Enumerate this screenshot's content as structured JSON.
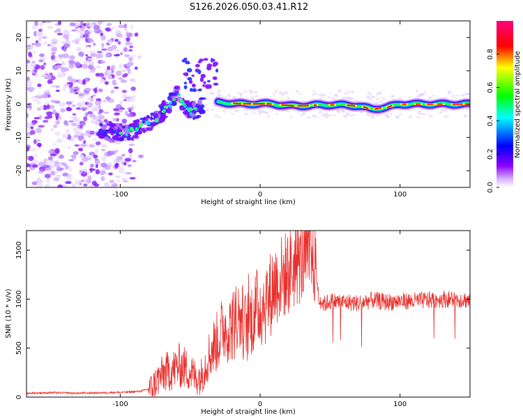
{
  "figure": {
    "title": "S126.2026.050.03.41.R12"
  },
  "chart_data": [
    {
      "type": "heatmap",
      "title": "S126.2026.050.03.41.R12",
      "xlabel": "Height of straight line (km)",
      "ylabel": "Frequency (Hz)",
      "xlim": [
        -167,
        150
      ],
      "ylim": [
        -25,
        25
      ],
      "xticks": [
        -100,
        0,
        100
      ],
      "yticks": [
        -20,
        -10,
        0,
        10,
        20
      ],
      "grid": false,
      "colorbar": {
        "label": "Normalized spectral amplitude",
        "range": [
          0,
          1
        ],
        "ticks": [
          "0.0",
          "0.2",
          "0.4",
          "0.6",
          "0.8"
        ],
        "colormap": [
          "#ffffff",
          "#8b00ff",
          "#0000ff",
          "#00ffff",
          "#00ff00",
          "#ffff00",
          "#ff0000",
          "#ff00aa"
        ]
      },
      "ridge": {
        "description": "dominant frequency track",
        "x": [
          -115,
          -105,
          -95,
          -85,
          -75,
          -65,
          -60,
          -55,
          -50,
          -45,
          -40,
          -30,
          -20,
          -10,
          0,
          10,
          20,
          30,
          40,
          50,
          60,
          70,
          80,
          90,
          100,
          110,
          120,
          130,
          140,
          150
        ],
        "y": [
          -8,
          -8,
          -8.5,
          -7,
          -5,
          0,
          3,
          0.5,
          -2,
          -1.5,
          0,
          0.5,
          0.3,
          0,
          0.2,
          0,
          -0.5,
          -0.5,
          -0.3,
          -0.2,
          -0.3,
          -0.5,
          -1.5,
          -1,
          0,
          0,
          0,
          0,
          0,
          0
        ]
      },
      "noise_region": {
        "description": "scattered low-amplitude noise",
        "x_range": [
          -167,
          -95
        ],
        "y_range": [
          -25,
          25
        ]
      }
    },
    {
      "type": "line",
      "xlabel": "Height of straight line (km)",
      "ylabel": "SNR (10 * v/v)",
      "xlim": [
        -167,
        150
      ],
      "ylim": [
        0,
        1700
      ],
      "xticks": [
        -100,
        0,
        100
      ],
      "yticks": [
        0,
        500,
        1000,
        1500
      ],
      "grid": false,
      "series": [
        {
          "name": "SNR",
          "color": "#e8312d",
          "x": [
            -167,
            -150,
            -130,
            -110,
            -95,
            -85,
            -78,
            -72,
            -68,
            -62,
            -58,
            -54,
            -50,
            -46,
            -42,
            -38,
            -34,
            -30,
            -26,
            -22,
            -18,
            -14,
            -10,
            -6,
            -2,
            2,
            6,
            10,
            14,
            18,
            22,
            26,
            30,
            34,
            38,
            40,
            42,
            46,
            50,
            60,
            70,
            80,
            90,
            100,
            110,
            120,
            130,
            140,
            150
          ],
          "y": [
            40,
            45,
            40,
            45,
            50,
            60,
            90,
            200,
            250,
            280,
            320,
            300,
            260,
            200,
            220,
            380,
            500,
            580,
            720,
            700,
            760,
            820,
            700,
            820,
            900,
            950,
            1000,
            1150,
            1200,
            1250,
            1300,
            1350,
            1400,
            1430,
            1420,
            1300,
            1000,
            950,
            980,
            970,
            960,
            990,
            970,
            980,
            980,
            990,
            1000,
            1000,
            990
          ]
        }
      ]
    }
  ]
}
